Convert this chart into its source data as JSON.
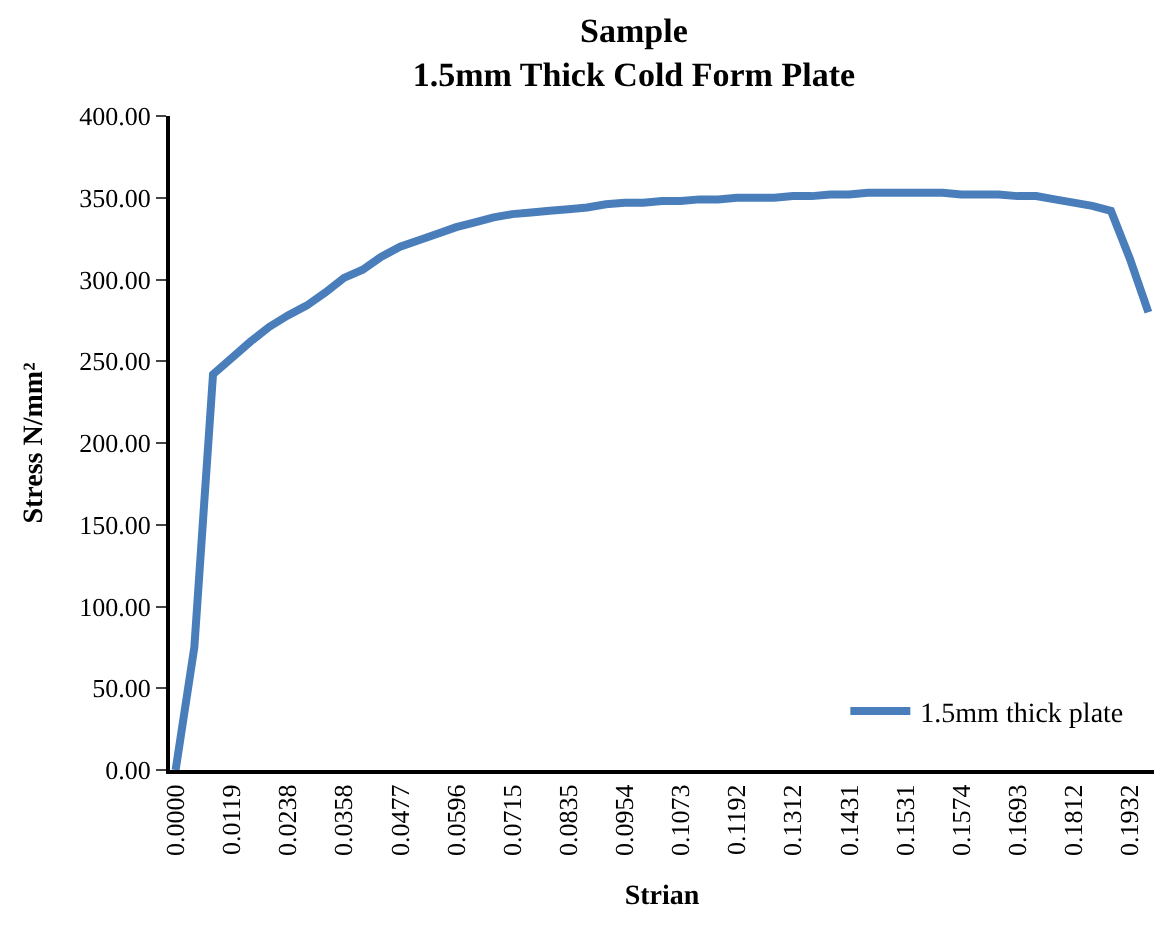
{
  "chart_data": {
    "type": "line",
    "title": "Sample",
    "subtitle": "1.5mm Thick Cold Form Plate",
    "xlabel": "Strian",
    "ylabel": "Stress N/mm²",
    "categories": [
      "0.0000",
      null,
      null,
      "0.0119",
      null,
      null,
      "0.0238",
      null,
      null,
      "0.0358",
      null,
      null,
      "0.0477",
      null,
      null,
      "0.0596",
      null,
      null,
      "0.0715",
      null,
      null,
      "0.0835",
      null,
      null,
      "0.0954",
      null,
      null,
      "0.1073",
      null,
      null,
      "0.1192",
      null,
      null,
      "0.1312",
      null,
      null,
      "0.1431",
      null,
      null,
      "0.1531",
      null,
      null,
      "0.1574",
      null,
      null,
      "0.1693",
      null,
      null,
      "0.1812",
      null,
      null,
      "0.1932",
      null
    ],
    "series": [
      {
        "name": "1.5mm thick plate",
        "color": "#4a7ebb",
        "values": [
          0,
          75,
          242,
          252,
          262,
          271,
          278,
          284,
          292,
          301,
          306,
          314,
          320,
          324,
          328,
          332,
          335,
          338,
          340,
          341,
          342,
          343,
          344,
          346,
          347,
          347,
          348,
          348,
          349,
          349,
          350,
          350,
          350,
          351,
          351,
          352,
          352,
          353,
          353,
          353,
          353,
          353,
          352,
          352,
          352,
          351,
          351,
          349,
          347,
          345,
          342,
          313,
          280
        ]
      }
    ],
    "ylim": [
      0,
      400
    ],
    "yticks": [
      {
        "value": 0,
        "label": "0.00"
      },
      {
        "value": 50,
        "label": "50.00"
      },
      {
        "value": 100,
        "label": "100.00"
      },
      {
        "value": 150,
        "label": "150.00"
      },
      {
        "value": 200,
        "label": "200.00"
      },
      {
        "value": 250,
        "label": "250.00"
      },
      {
        "value": 300,
        "label": "300.00"
      },
      {
        "value": 350,
        "label": "350.00"
      },
      {
        "value": 400,
        "label": "400.00"
      }
    ],
    "legend": "bottom right",
    "marker": "none",
    "line_style": "solid"
  }
}
